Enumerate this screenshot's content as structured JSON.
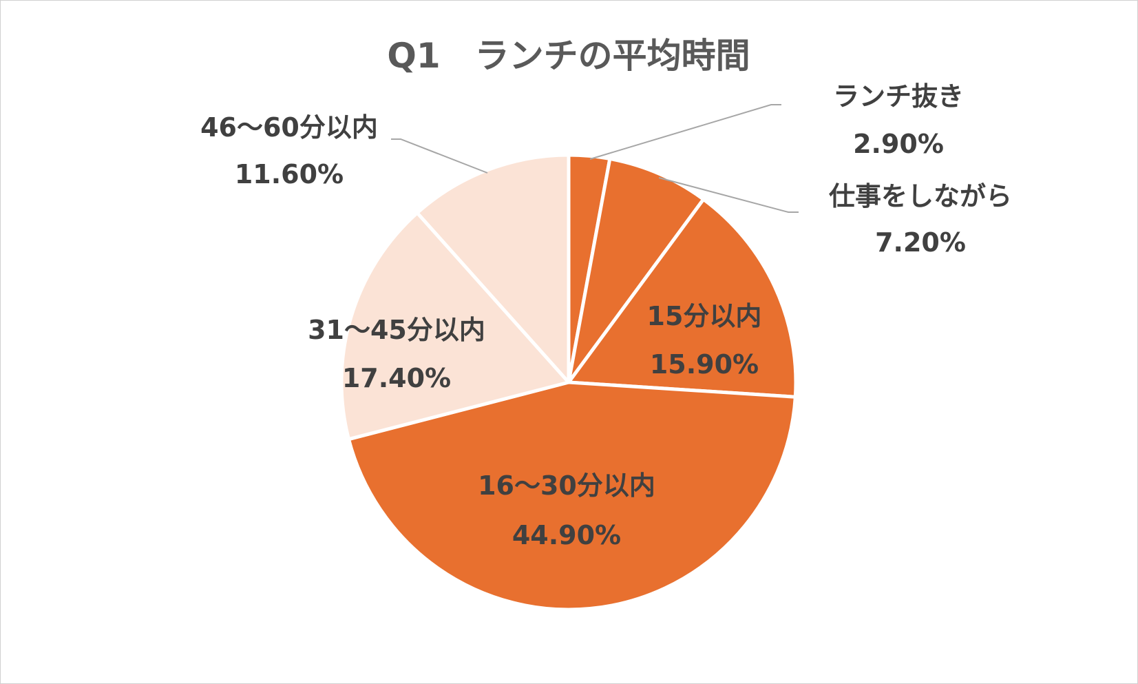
{
  "chart_data": {
    "type": "pie",
    "title": "Q1　ランチの平均時間",
    "slices": [
      {
        "label": "ランチ抜き",
        "value": 2.9,
        "value_label": "2.90%",
        "color": "#E8702F"
      },
      {
        "label": "仕事をしながら",
        "value": 7.2,
        "value_label": "7.20%",
        "color": "#E8702F"
      },
      {
        "label": "15分以内",
        "value": 15.9,
        "value_label": "15.90%",
        "color": "#E8702F"
      },
      {
        "label": "16〜30分以内",
        "value": 44.9,
        "value_label": "44.90%",
        "color": "#E8702F"
      },
      {
        "label": "31〜45分以内",
        "value": 17.4,
        "value_label": "17.40%",
        "color": "#FBE3D6"
      },
      {
        "label": "46〜60分以内",
        "value": 11.6,
        "value_label": "11.60%",
        "color": "#FBE3D6"
      }
    ]
  }
}
